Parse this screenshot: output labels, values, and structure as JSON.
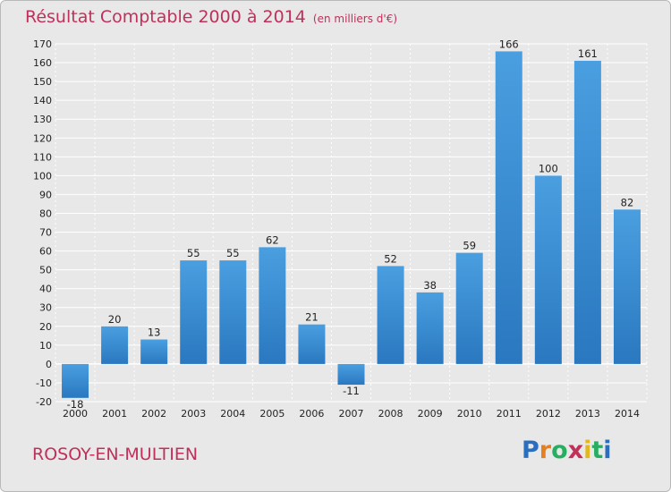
{
  "header": {
    "title": "Résultat Comptable 2000 à 2014",
    "unit": "(en milliers d'€)"
  },
  "footer": {
    "commune": "ROSOY-EN-MULTIEN",
    "logo": [
      "P",
      "r",
      "o",
      "x",
      "i",
      "t",
      "i"
    ]
  },
  "colors": {
    "bar": "#4a9fe0",
    "bar_dark": "#2a78c0",
    "title": "#c0305a",
    "logo": [
      "#2a6fbf",
      "#e67e22",
      "#27ae60",
      "#c0305a",
      "#e2b81e",
      "#27ae60",
      "#2a6fbf"
    ]
  },
  "chart_data": {
    "type": "bar",
    "title": "Résultat Comptable 2000 à 2014",
    "categories": [
      "2000",
      "2001",
      "2002",
      "2003",
      "2004",
      "2005",
      "2006",
      "2007",
      "2008",
      "2009",
      "2010",
      "2011",
      "2012",
      "2013",
      "2014"
    ],
    "values": [
      -18,
      20,
      13,
      55,
      55,
      62,
      21,
      -11,
      52,
      38,
      59,
      166,
      100,
      161,
      82
    ],
    "value_labels": [
      "-18",
      "20",
      "13",
      "55",
      "55",
      "62",
      "21",
      "-11",
      "52",
      "38",
      "59",
      "166",
      "100",
      "161",
      "82"
    ],
    "yticks": [
      -20,
      -10,
      0,
      10,
      20,
      30,
      40,
      50,
      60,
      70,
      80,
      90,
      100,
      110,
      120,
      130,
      140,
      150,
      160,
      170
    ],
    "ylim": [
      -20,
      170
    ],
    "xlabel": "",
    "ylabel": "",
    "grid": true,
    "legend": "none"
  }
}
